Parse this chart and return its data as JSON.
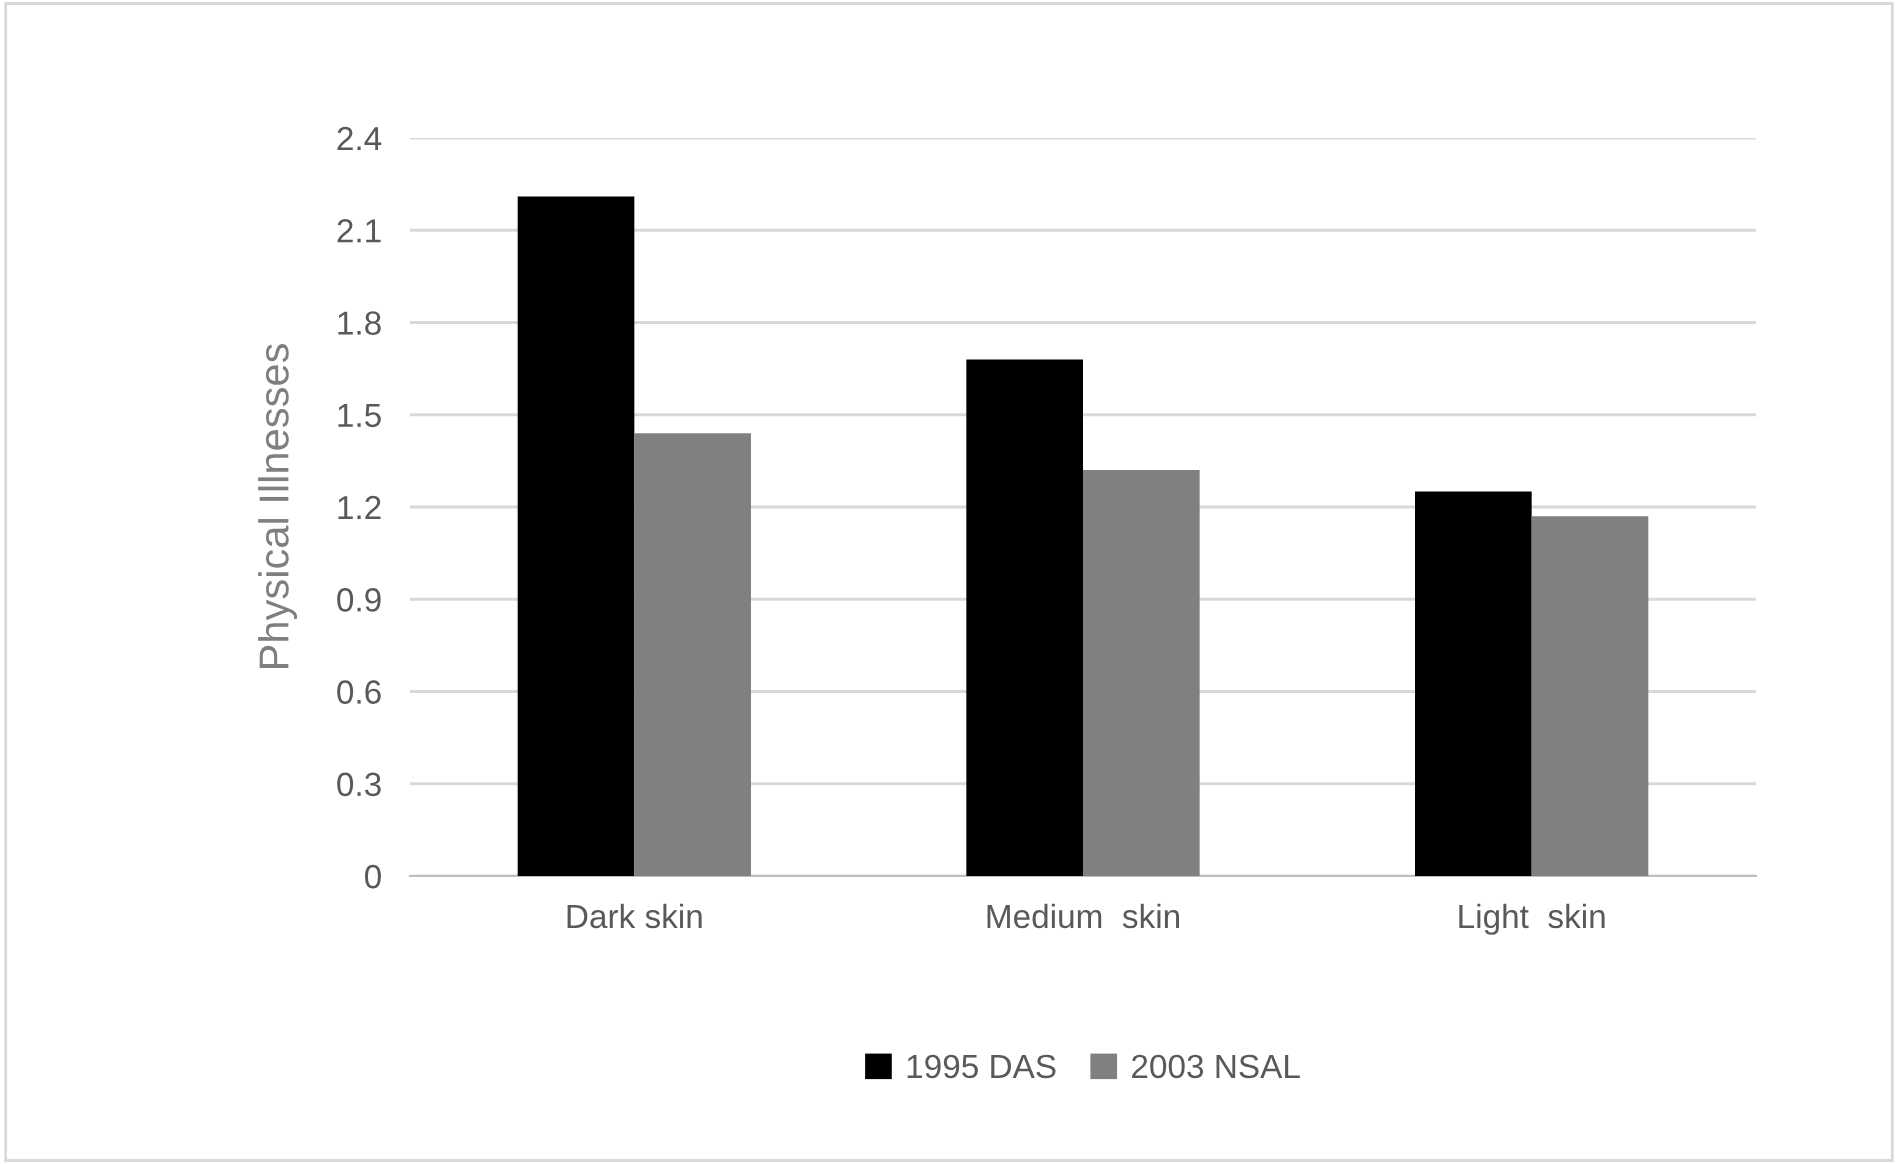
{
  "chart_data": {
    "type": "bar",
    "ylabel": "Physical Illnesses",
    "categories": [
      "Dark skin",
      "Medium  skin",
      "Light  skin"
    ],
    "series": [
      {
        "name": "1995 DAS",
        "color": "#000000",
        "values": [
          2.21,
          1.68,
          1.25
        ]
      },
      {
        "name": "2003 NSAL",
        "color": "#808080",
        "values": [
          1.44,
          1.32,
          1.17
        ]
      }
    ],
    "ylim": [
      0,
      2.4
    ],
    "yticks": [
      0,
      0.3,
      0.6,
      0.9,
      1.2,
      1.5,
      1.8,
      2.1,
      2.4
    ],
    "grid": "y",
    "legend": "bottom"
  }
}
